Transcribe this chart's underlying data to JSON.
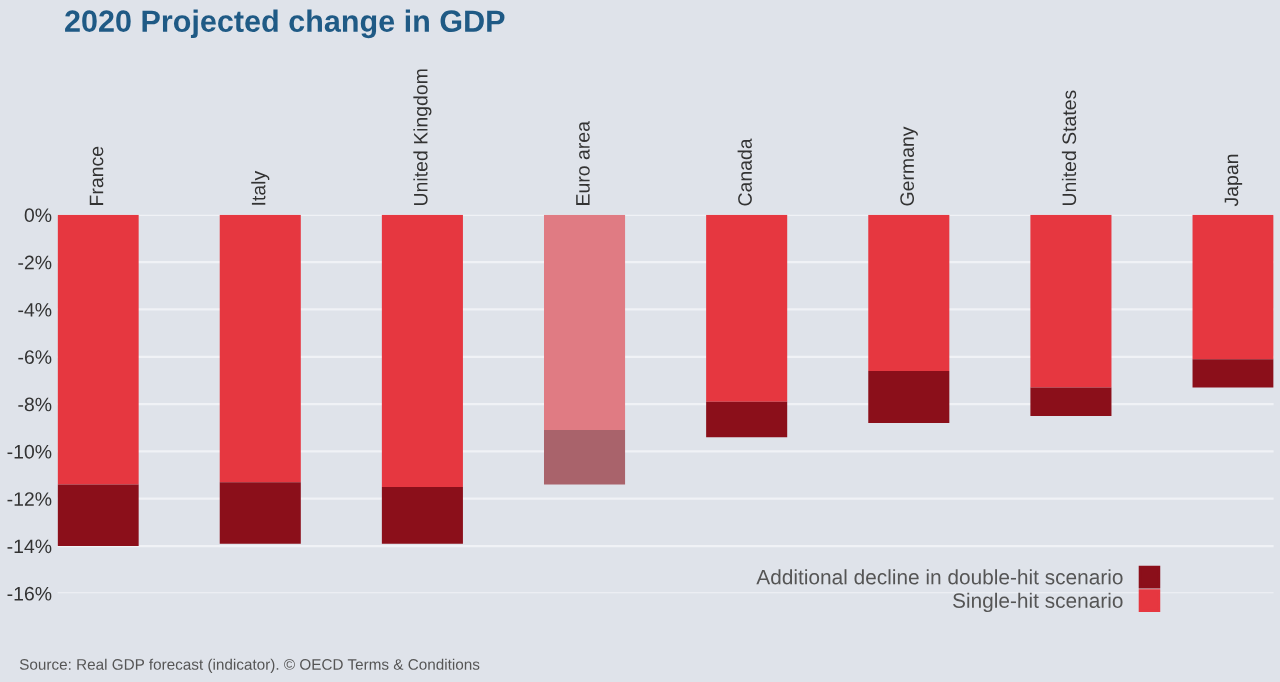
{
  "chart_data": {
    "type": "bar",
    "stacked": true,
    "title": "2020 Projected change in GDP",
    "categories": [
      "France",
      "Italy",
      "United Kingdom",
      "Euro area",
      "Canada",
      "Germany",
      "United States",
      "Japan"
    ],
    "series": [
      {
        "name": "Single-hit scenario",
        "color": "#e63740",
        "colors": [
          "#e63740",
          "#e63740",
          "#e63740",
          "#e07b83",
          "#e63740",
          "#e63740",
          "#e63740",
          "#e63740"
        ],
        "values": [
          -11.4,
          -11.3,
          -11.5,
          -9.1,
          -7.9,
          -6.6,
          -7.3,
          -6.1
        ]
      },
      {
        "name": "Additional decline in double-hit scenario",
        "color": "#8b0f1a",
        "colors": [
          "#8b0f1a",
          "#8b0f1a",
          "#8b0f1a",
          "#a9636b",
          "#8b0f1a",
          "#8b0f1a",
          "#8b0f1a",
          "#8b0f1a"
        ],
        "values": [
          -2.6,
          -2.6,
          -2.4,
          -2.3,
          -1.5,
          -2.2,
          -1.2,
          -1.2
        ]
      }
    ],
    "ylim": [
      -16,
      0
    ],
    "yticks": [
      {
        "value": 0,
        "label": "0%"
      },
      {
        "value": -2,
        "label": "-2%"
      },
      {
        "value": -4,
        "label": "-4%"
      },
      {
        "value": -6,
        "label": "-6%"
      },
      {
        "value": -8,
        "label": "-8%"
      },
      {
        "value": -10,
        "label": "-10%"
      },
      {
        "value": -12,
        "label": "-12%"
      },
      {
        "value": -14,
        "label": "-14%"
      },
      {
        "value": -16,
        "label": "-16%"
      }
    ],
    "grid": "y",
    "legend": "bottom right",
    "annotations": [
      "Source: Real GDP forecast (indicator). © OECD Terms & Conditions"
    ]
  }
}
